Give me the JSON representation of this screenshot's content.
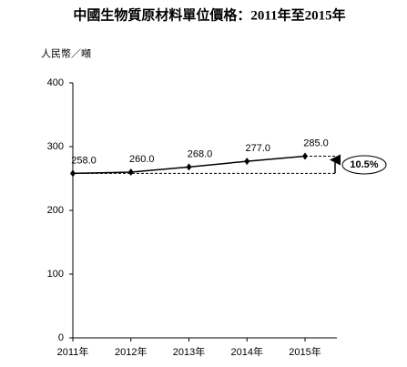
{
  "chart_data": {
    "type": "line",
    "title": "中國生物質原材料單位價格：2011年至2015年",
    "y_label": "人民幣／噸",
    "categories": [
      "2011年",
      "2012年",
      "2013年",
      "2014年",
      "2015年"
    ],
    "values": [
      258,
      260,
      268,
      277,
      285
    ],
    "value_labels": [
      "258.0",
      "260.0",
      "268.0",
      "277.0",
      "285.0"
    ],
    "color": "#000000",
    "ylim": [
      0,
      400
    ],
    "yticks": [
      0,
      100,
      200,
      300,
      400
    ],
    "annotation": "10.5%"
  }
}
